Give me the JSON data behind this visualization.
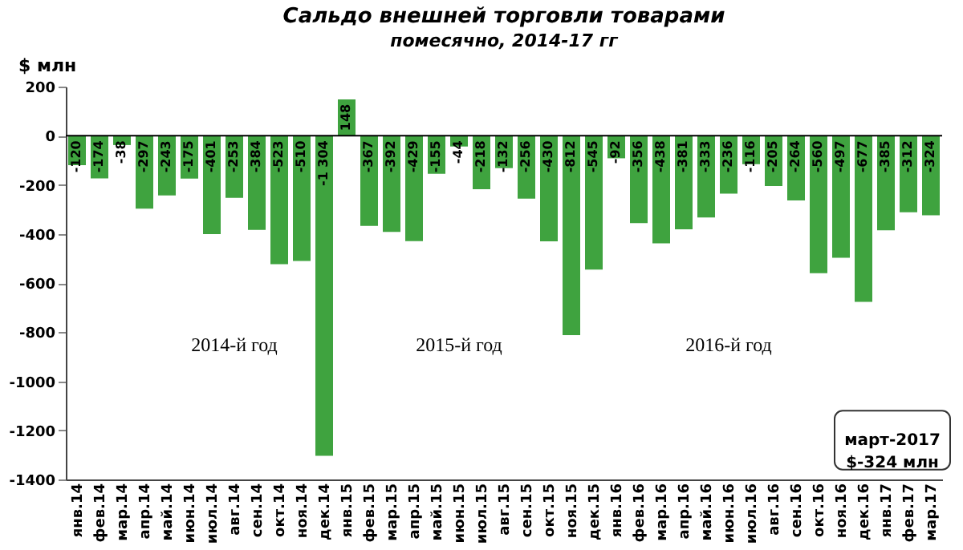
{
  "chart_data": {
    "type": "bar",
    "title": "Сальдо внешней торговли товарами",
    "subtitle": "помесячно, 2014-17 гг",
    "ylabel": "$ млн",
    "categories": [
      "янв.14",
      "фев.14",
      "мар.14",
      "апр.14",
      "май.14",
      "июн.14",
      "июл.14",
      "авг.14",
      "сен.14",
      "окт.14",
      "ноя.14",
      "дек.14",
      "янв.15",
      "фев.15",
      "мар.15",
      "апр.15",
      "май.15",
      "июн.15",
      "июл.15",
      "авг.15",
      "сен.15",
      "окт.15",
      "ноя.15",
      "дек.15",
      "янв.16",
      "фев.16",
      "мар.16",
      "апр.16",
      "май.16",
      "июн.16",
      "июл.16",
      "авг.16",
      "сен.16",
      "окт.16",
      "ноя.16",
      "дек.16",
      "янв.17",
      "фев.17",
      "мар.17"
    ],
    "values": [
      -120,
      -174,
      -38,
      -297,
      -243,
      -175,
      -401,
      -253,
      -384,
      -523,
      -510,
      -1304,
      148,
      -367,
      -392,
      -429,
      -155,
      -44,
      -218,
      -132,
      -256,
      -430,
      -812,
      -545,
      -92,
      -356,
      -438,
      -381,
      -333,
      -236,
      -116,
      -205,
      -264,
      -560,
      -497,
      -677,
      -385,
      -312,
      -324
    ],
    "value_labels": [
      "-120",
      "-174",
      "-38",
      "-297",
      "-243",
      "-175",
      "-401",
      "-253",
      "-384",
      "-523",
      "-510",
      "-1 304",
      "148",
      "-367",
      "-392",
      "-429",
      "-155",
      "-44",
      "-218",
      "-132",
      "-256",
      "-430",
      "-812",
      "-545",
      "-92",
      "-356",
      "-438",
      "-381",
      "-333",
      "-236",
      "-116",
      "-205",
      "-264",
      "-560",
      "-497",
      "-677",
      "-385",
      "-312",
      "-324"
    ],
    "color": "#3fa33f",
    "ylim": [
      -1400,
      200
    ],
    "yticks": [
      -1400,
      -1200,
      -1000,
      -800,
      -600,
      -400,
      -200,
      0,
      200
    ],
    "grid": false,
    "ref_lines": [
      {
        "axis": "y",
        "value": 0,
        "color": "#000000"
      }
    ],
    "annotations": [
      "2014-й год",
      "2015-й год",
      "2016-й год",
      "март-2017\n$-324 млн"
    ]
  }
}
